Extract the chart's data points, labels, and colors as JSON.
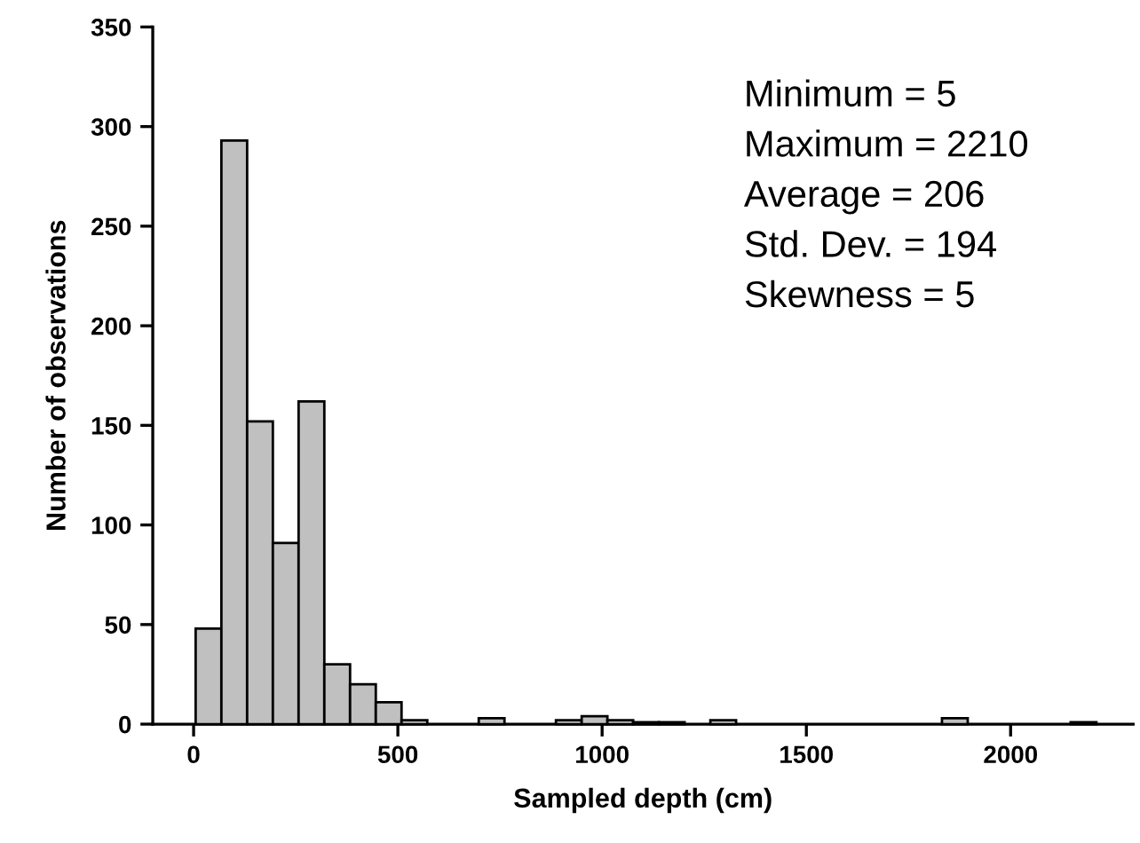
{
  "chart_data": {
    "type": "histogram",
    "xlabel": "Sampled depth (cm)",
    "ylabel": "Number of observations",
    "bins": [
      5,
      68,
      131,
      194,
      257,
      320,
      383,
      446,
      509,
      572,
      635,
      698,
      761,
      824,
      887,
      950,
      1013,
      1076,
      1139,
      1202,
      1265,
      1328,
      1391,
      1454,
      1517,
      1580,
      1643,
      1706,
      1769,
      1832,
      1895,
      1958,
      2021,
      2084,
      2147,
      2210
    ],
    "values": [
      48,
      293,
      152,
      91,
      162,
      30,
      20,
      11,
      2,
      0,
      0,
      3,
      0,
      0,
      2,
      4,
      2,
      1,
      1,
      0,
      2,
      0,
      0,
      0,
      0,
      0,
      0,
      0,
      0,
      3,
      0,
      0,
      0,
      0,
      1
    ],
    "color": "#c0c0c0",
    "xlim": [
      -100,
      2300
    ],
    "xticks": [
      0,
      500,
      1000,
      1500,
      2000
    ],
    "ylim": [
      0,
      350
    ],
    "yticks": [
      0,
      50,
      100,
      150,
      200,
      250,
      300,
      350
    ],
    "grid": false,
    "annotations": [
      "Minimum = 5",
      "Maximum = 2210",
      "Average = 206",
      "Std. Dev. = 194",
      "Skewness = 5"
    ]
  }
}
